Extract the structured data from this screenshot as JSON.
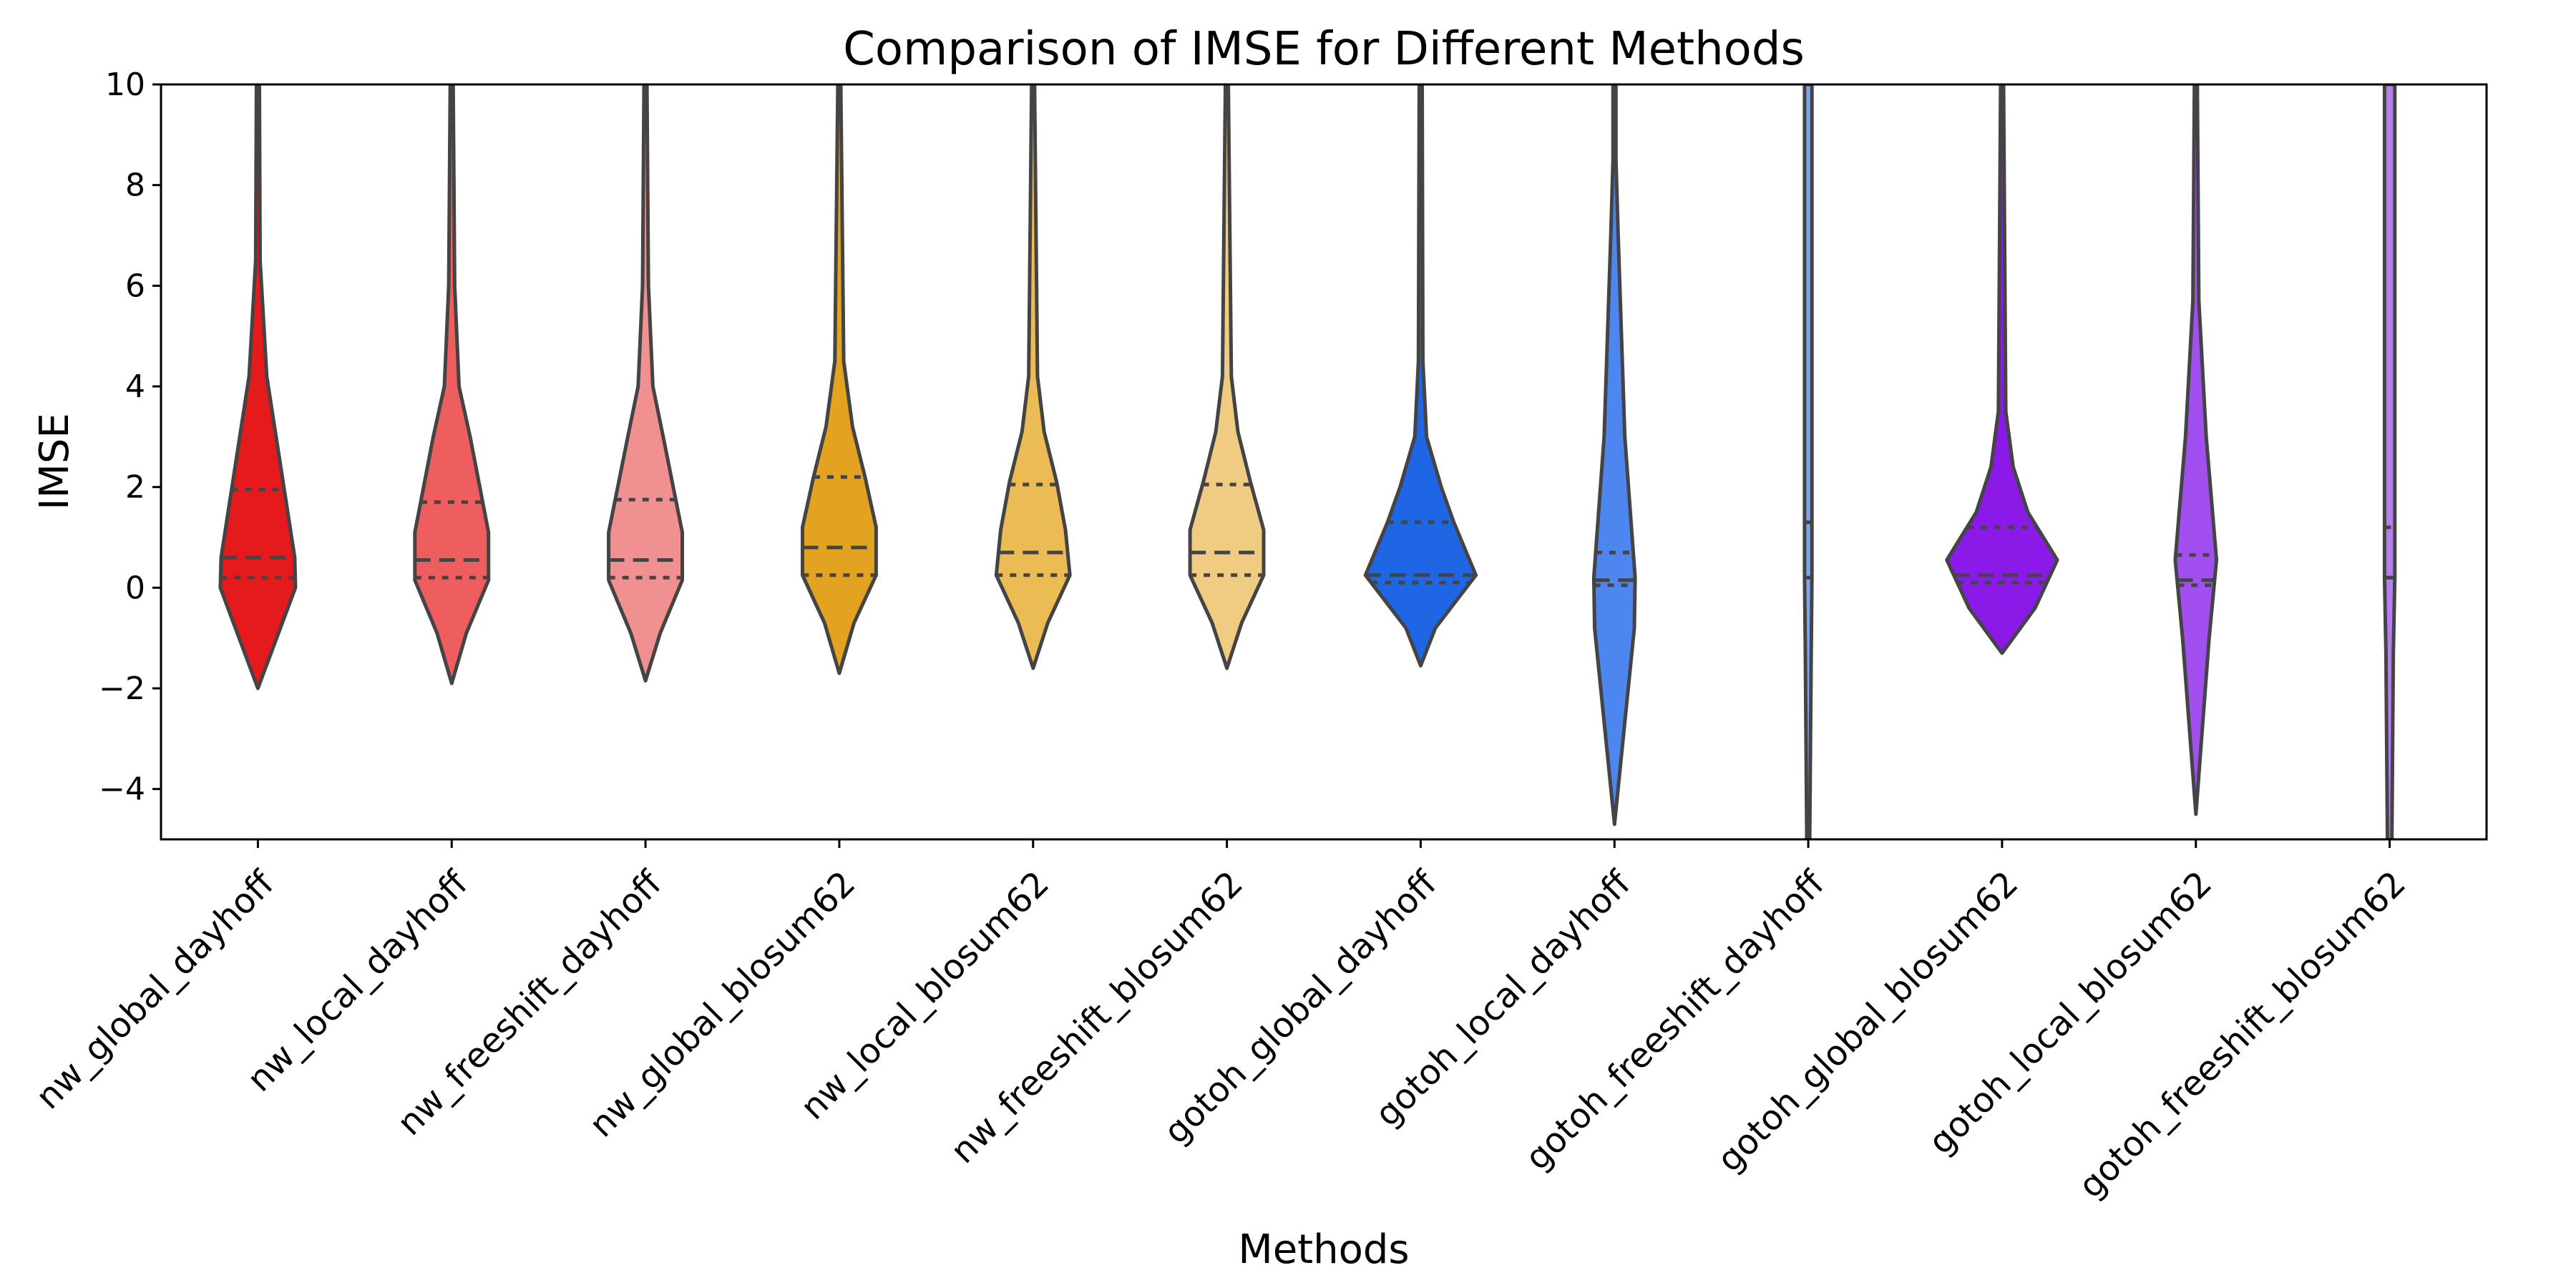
{
  "chart_data": {
    "type": "violin",
    "title": "Comparison of IMSE for Different Methods",
    "xlabel": "Methods",
    "ylabel": "IMSE",
    "ylim": [
      -5,
      10
    ],
    "yticks": [
      -4,
      -2,
      0,
      2,
      4,
      6,
      8,
      10
    ],
    "ytick_labels": [
      "−4",
      "−2",
      "0",
      "2",
      "4",
      "6",
      "8",
      "10"
    ],
    "grid": false,
    "categories": [
      "nw_global_dayhoff",
      "nw_local_dayhoff",
      "nw_freeshift_dayhoff",
      "nw_global_blosum62",
      "nw_local_blosum62",
      "nw_freeshift_blosum62",
      "gotoh_global_dayhoff",
      "gotoh_local_dayhoff",
      "gotoh_freeshift_dayhoff",
      "gotoh_global_blosum62",
      "gotoh_local_blosum62",
      "gotoh_freeshift_blosum62"
    ],
    "colors": [
      "#e41a1c",
      "#ee5e5f",
      "#f09090",
      "#e3a21f",
      "#ebbb54",
      "#f0cc82",
      "#1f66e5",
      "#4d86ee",
      "#7ea7f2",
      "#8b1ae8",
      "#a24ff0",
      "#b57ff0"
    ],
    "violins": [
      {
        "min": -2.0,
        "max": 10,
        "q1": 0.2,
        "median": 0.6,
        "q3": 1.95,
        "profile": [
          [
            -2.0,
            0
          ],
          [
            0.0,
            0.51
          ],
          [
            0.6,
            0.5
          ],
          [
            4.2,
            0.12
          ],
          [
            6.5,
            0.03
          ],
          [
            10,
            0.02
          ]
        ]
      },
      {
        "min": -1.9,
        "max": 10,
        "q1": 0.2,
        "median": 0.55,
        "q3": 1.7,
        "profile": [
          [
            -1.9,
            0
          ],
          [
            -0.9,
            0.2
          ],
          [
            0.15,
            0.5
          ],
          [
            1.1,
            0.5
          ],
          [
            3.0,
            0.25
          ],
          [
            4.0,
            0.1
          ],
          [
            6.0,
            0.04
          ],
          [
            10,
            0.02
          ]
        ]
      },
      {
        "min": -1.85,
        "max": 10,
        "q1": 0.2,
        "median": 0.55,
        "q3": 1.75,
        "profile": [
          [
            -1.85,
            0
          ],
          [
            -0.9,
            0.2
          ],
          [
            0.15,
            0.5
          ],
          [
            1.1,
            0.5
          ],
          [
            3.0,
            0.24
          ],
          [
            4.0,
            0.1
          ],
          [
            6.0,
            0.04
          ],
          [
            10,
            0.02
          ]
        ]
      },
      {
        "min": -1.7,
        "max": 10,
        "q1": 0.25,
        "median": 0.8,
        "q3": 2.2,
        "profile": [
          [
            -1.7,
            0
          ],
          [
            -0.7,
            0.2
          ],
          [
            0.25,
            0.5
          ],
          [
            1.2,
            0.5
          ],
          [
            2.2,
            0.35
          ],
          [
            3.2,
            0.18
          ],
          [
            4.5,
            0.06
          ],
          [
            10,
            0.02
          ]
        ]
      },
      {
        "min": -1.6,
        "max": 10,
        "q1": 0.25,
        "median": 0.7,
        "q3": 2.05,
        "profile": [
          [
            -1.6,
            0
          ],
          [
            -0.7,
            0.2
          ],
          [
            0.25,
            0.5
          ],
          [
            1.15,
            0.44
          ],
          [
            2.1,
            0.32
          ],
          [
            3.1,
            0.15
          ],
          [
            4.2,
            0.06
          ],
          [
            10,
            0.02
          ]
        ]
      },
      {
        "min": -1.6,
        "max": 10,
        "q1": 0.25,
        "median": 0.7,
        "q3": 2.05,
        "profile": [
          [
            -1.6,
            0
          ],
          [
            -0.7,
            0.2
          ],
          [
            0.25,
            0.5
          ],
          [
            1.15,
            0.5
          ],
          [
            2.1,
            0.32
          ],
          [
            3.1,
            0.15
          ],
          [
            4.2,
            0.06
          ],
          [
            10,
            0.02
          ]
        ]
      },
      {
        "min": -1.55,
        "max": 10,
        "q1": 0.1,
        "median": 0.25,
        "q3": 1.3,
        "profile": [
          [
            -1.55,
            0
          ],
          [
            -0.8,
            0.2
          ],
          [
            0.25,
            0.75
          ],
          [
            1.3,
            0.45
          ],
          [
            2.0,
            0.28
          ],
          [
            3.0,
            0.08
          ],
          [
            4.5,
            0.03
          ],
          [
            10,
            0.02
          ]
        ]
      },
      {
        "min": -4.7,
        "max": 10,
        "q1": 0.05,
        "median": 0.15,
        "q3": 0.7,
        "profile": [
          [
            -4.7,
            0
          ],
          [
            -0.8,
            0.27
          ],
          [
            0.2,
            0.28
          ],
          [
            3.0,
            0.14
          ],
          [
            7.0,
            0.05
          ],
          [
            8.5,
            0.02
          ],
          [
            10,
            0.02
          ]
        ]
      },
      {
        "min": -5,
        "max": 10,
        "q1": 0.2,
        "median": 0.2,
        "q3": 1.3,
        "profile": [
          [
            -5,
            0.02
          ],
          [
            -1.3,
            0.04
          ],
          [
            0.2,
            0.05
          ],
          [
            4.5,
            0.05
          ],
          [
            10,
            0.05
          ]
        ]
      },
      {
        "min": -1.3,
        "max": 10,
        "q1": 0.1,
        "median": 0.25,
        "q3": 1.2,
        "profile": [
          [
            -1.3,
            0
          ],
          [
            -0.4,
            0.45
          ],
          [
            0.55,
            0.75
          ],
          [
            1.5,
            0.35
          ],
          [
            2.4,
            0.15
          ],
          [
            3.5,
            0.05
          ],
          [
            10,
            0.02
          ]
        ]
      },
      {
        "min": -4.5,
        "max": 10,
        "q1": 0.05,
        "median": 0.15,
        "q3": 0.65,
        "profile": [
          [
            -4.5,
            0
          ],
          [
            -1.0,
            0.18
          ],
          [
            0.55,
            0.28
          ],
          [
            3.0,
            0.14
          ],
          [
            5.7,
            0.04
          ],
          [
            10,
            0.02
          ]
        ]
      },
      {
        "min": -5,
        "max": 10,
        "q1": 0.2,
        "median": 0.2,
        "q3": 1.2,
        "profile": [
          [
            -5,
            0.03
          ],
          [
            -1.3,
            0.05
          ],
          [
            0.2,
            0.07
          ],
          [
            4.5,
            0.07
          ],
          [
            10,
            0.07
          ]
        ]
      }
    ]
  }
}
